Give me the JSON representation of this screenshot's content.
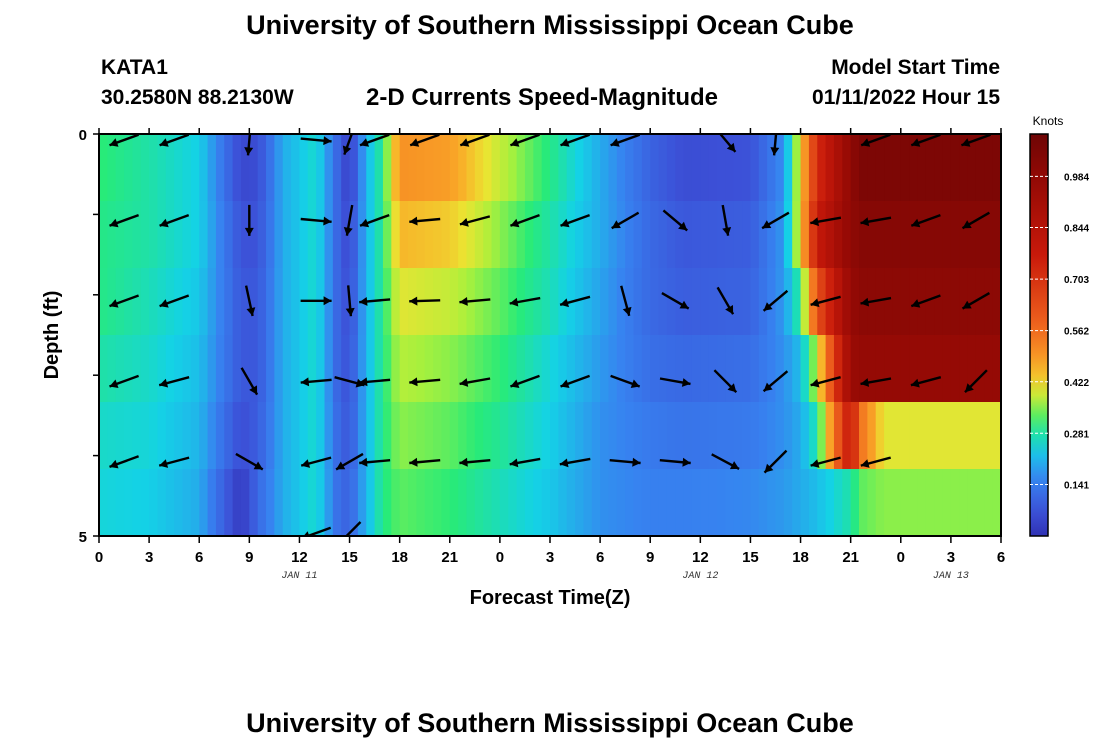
{
  "page": {
    "title": "University of Southern Mississippi Ocean Cube",
    "title_repeat": "University of Southern Mississippi Ocean Cube",
    "station_id": "KATA1",
    "station_coords": "30.2580N  88.2130W",
    "product": "2-D Currents Speed-Magnitude",
    "model_start_label": "Model Start Time",
    "model_start_value": "01/11/2022 Hour 15"
  },
  "chart_data": {
    "type": "heatmap",
    "title": "2-D Currents Speed-Magnitude",
    "xlabel": "Forecast Time(Z)",
    "ylabel": "Depth (ft)",
    "x_ticks": [
      "0",
      "3",
      "6",
      "9",
      "12",
      "15",
      "18",
      "21",
      "0",
      "3",
      "6",
      "9",
      "12",
      "15",
      "18",
      "21",
      "0",
      "3",
      "6"
    ],
    "x_hours_range": [
      0,
      54
    ],
    "date_labels": [
      {
        "text": "JAN 11",
        "hour": 12
      },
      {
        "text": "JAN 12",
        "hour": 36
      },
      {
        "text": "JAN 13",
        "hour": 51
      }
    ],
    "y_ticks": [
      "0",
      "5"
    ],
    "y_range": [
      0,
      5
    ],
    "colorbar": {
      "unit": "Knots",
      "labels": [
        "0.984",
        "0.844",
        "0.703",
        "0.562",
        "0.422",
        "0.281",
        "0.141"
      ],
      "range": [
        0.0,
        1.1
      ]
    },
    "anchor_hours": [
      0,
      3,
      6,
      8.5,
      9.5,
      11,
      13,
      14.4,
      15,
      16,
      17,
      18,
      21,
      24,
      27,
      30,
      33,
      35,
      39,
      41,
      42,
      43,
      45,
      45.6,
      47
    ],
    "row_speeds": [
      [
        0.31,
        0.28,
        0.24,
        0.05,
        0.06,
        0.2,
        0.26,
        0.09,
        0.03,
        0.21,
        0.3,
        0.5,
        0.48,
        0.38,
        0.3,
        0.2,
        0.1,
        0.06,
        0.07,
        0.17,
        0.42,
        0.72,
        0.99,
        1.05,
        1.05
      ],
      [
        0.3,
        0.28,
        0.24,
        0.07,
        0.07,
        0.2,
        0.26,
        0.09,
        0.05,
        0.21,
        0.3,
        0.45,
        0.43,
        0.35,
        0.28,
        0.2,
        0.11,
        0.08,
        0.09,
        0.18,
        0.42,
        0.78,
        0.99,
        1.02,
        1.02
      ],
      [
        0.3,
        0.27,
        0.23,
        0.08,
        0.08,
        0.2,
        0.26,
        0.09,
        0.06,
        0.21,
        0.3,
        0.4,
        0.38,
        0.33,
        0.27,
        0.19,
        0.11,
        0.09,
        0.1,
        0.18,
        0.3,
        0.62,
        0.97,
        1.0,
        1.0
      ],
      [
        0.28,
        0.26,
        0.22,
        0.08,
        0.08,
        0.2,
        0.26,
        0.09,
        0.07,
        0.21,
        0.3,
        0.37,
        0.35,
        0.31,
        0.25,
        0.18,
        0.12,
        0.11,
        0.12,
        0.17,
        0.22,
        0.38,
        0.95,
        0.97,
        0.97
      ],
      [
        0.26,
        0.25,
        0.21,
        0.06,
        0.09,
        0.2,
        0.26,
        0.1,
        0.08,
        0.21,
        0.3,
        0.35,
        0.33,
        0.29,
        0.24,
        0.17,
        0.14,
        0.13,
        0.14,
        0.17,
        0.2,
        0.28,
        0.8,
        0.55,
        0.4
      ],
      [
        0.25,
        0.24,
        0.2,
        0.02,
        0.11,
        0.2,
        0.26,
        0.11,
        0.1,
        0.21,
        0.3,
        0.33,
        0.31,
        0.27,
        0.23,
        0.17,
        0.15,
        0.15,
        0.16,
        0.18,
        0.2,
        0.22,
        0.28,
        0.33,
        0.35
      ]
    ],
    "vectors": {
      "hours": [
        1.5,
        4.5,
        9,
        13,
        15,
        16.5,
        19.5,
        22.5,
        25.5,
        28.5,
        31.5,
        34.5,
        37.5,
        40.5,
        43.5,
        46.5,
        49.5,
        52.5
      ],
      "depth_rows": [
        0,
        1,
        2,
        3,
        4,
        5
      ],
      "rows": [
        [
          {
            "dir": 250,
            "sp": 0.3
          },
          {
            "dir": 250,
            "sp": 0.3
          },
          {
            "dir": 185,
            "sp": 0.3
          },
          {
            "dir": 95,
            "sp": 0.3
          },
          {
            "dir": 200,
            "sp": 0.3
          },
          {
            "dir": 250,
            "sp": 0.3
          },
          {
            "dir": 250,
            "sp": 0.3
          },
          {
            "dir": 250,
            "sp": 0.3
          },
          {
            "dir": 250,
            "sp": 0.3
          },
          {
            "dir": 250,
            "sp": 0.3
          },
          {
            "dir": 250,
            "sp": 0.3
          },
          {
            "dir": null,
            "sp": 0
          },
          {
            "dir": 140,
            "sp": 0.3
          },
          {
            "dir": 185,
            "sp": 0.3
          },
          {
            "dir": null,
            "sp": 0
          },
          {
            "dir": 250,
            "sp": 0.3
          },
          {
            "dir": 250,
            "sp": 0.3
          },
          {
            "dir": 250,
            "sp": 0.3
          }
        ],
        [
          {
            "dir": 250,
            "sp": 0.3
          },
          {
            "dir": 250,
            "sp": 0.3
          },
          {
            "dir": 180,
            "sp": 0.3
          },
          {
            "dir": 95,
            "sp": 0.3
          },
          {
            "dir": 190,
            "sp": 0.3
          },
          {
            "dir": 250,
            "sp": 0.3
          },
          {
            "dir": 265,
            "sp": 0.3
          },
          {
            "dir": 255,
            "sp": 0.3
          },
          {
            "dir": 250,
            "sp": 0.3
          },
          {
            "dir": 250,
            "sp": 0.3
          },
          {
            "dir": 240,
            "sp": 0.3
          },
          {
            "dir": 130,
            "sp": 0.3
          },
          {
            "dir": 170,
            "sp": 0.3
          },
          {
            "dir": 240,
            "sp": 0.3
          },
          {
            "dir": 260,
            "sp": 0.3
          },
          {
            "dir": 260,
            "sp": 0.3
          },
          {
            "dir": 250,
            "sp": 0.3
          },
          {
            "dir": 240,
            "sp": 0.3
          }
        ],
        [
          {
            "dir": 250,
            "sp": 0.3
          },
          {
            "dir": 250,
            "sp": 0.3
          },
          {
            "dir": 168,
            "sp": 0.3
          },
          {
            "dir": 90,
            "sp": 0.3
          },
          {
            "dir": 175,
            "sp": 0.3
          },
          {
            "dir": 265,
            "sp": 0.3
          },
          {
            "dir": 268,
            "sp": 0.3
          },
          {
            "dir": 265,
            "sp": 0.3
          },
          {
            "dir": 260,
            "sp": 0.3
          },
          {
            "dir": 255,
            "sp": 0.3
          },
          {
            "dir": 165,
            "sp": 0.3
          },
          {
            "dir": 120,
            "sp": 0.3
          },
          {
            "dir": 150,
            "sp": 0.3
          },
          {
            "dir": 230,
            "sp": 0.3
          },
          {
            "dir": 255,
            "sp": 0.3
          },
          {
            "dir": 260,
            "sp": 0.3
          },
          {
            "dir": 250,
            "sp": 0.3
          },
          {
            "dir": 240,
            "sp": 0.3
          }
        ],
        [
          {
            "dir": 250,
            "sp": 0.3
          },
          {
            "dir": 255,
            "sp": 0.3
          },
          {
            "dir": 150,
            "sp": 0.3
          },
          {
            "dir": 265,
            "sp": 0.3
          },
          {
            "dir": 105,
            "sp": 0.3
          },
          {
            "dir": 265,
            "sp": 0.3
          },
          {
            "dir": 265,
            "sp": 0.3
          },
          {
            "dir": 260,
            "sp": 0.3
          },
          {
            "dir": 250,
            "sp": 0.3
          },
          {
            "dir": 250,
            "sp": 0.3
          },
          {
            "dir": 110,
            "sp": 0.3
          },
          {
            "dir": 100,
            "sp": 0.3
          },
          {
            "dir": 135,
            "sp": 0.3
          },
          {
            "dir": 230,
            "sp": 0.3
          },
          {
            "dir": 255,
            "sp": 0.3
          },
          {
            "dir": 260,
            "sp": 0.3
          },
          {
            "dir": 255,
            "sp": 0.3
          },
          {
            "dir": 225,
            "sp": 0.3
          }
        ],
        [
          {
            "dir": 250,
            "sp": 0.3
          },
          {
            "dir": 255,
            "sp": 0.3
          },
          {
            "dir": 120,
            "sp": 0.3
          },
          {
            "dir": 255,
            "sp": 0.3
          },
          {
            "dir": 240,
            "sp": 0.3
          },
          {
            "dir": 265,
            "sp": 0.3
          },
          {
            "dir": 265,
            "sp": 0.3
          },
          {
            "dir": 265,
            "sp": 0.3
          },
          {
            "dir": 260,
            "sp": 0.3
          },
          {
            "dir": 260,
            "sp": 0.3
          },
          {
            "dir": 95,
            "sp": 0.3
          },
          {
            "dir": 95,
            "sp": 0.3
          },
          {
            "dir": 118,
            "sp": 0.3
          },
          {
            "dir": 225,
            "sp": 0.3
          },
          {
            "dir": 255,
            "sp": 0.3
          },
          {
            "dir": 255,
            "sp": 0.3
          },
          {
            "dir": null,
            "sp": 0
          },
          {
            "dir": null,
            "sp": 0
          }
        ],
        [
          {
            "dir": null,
            "sp": 0
          },
          {
            "dir": null,
            "sp": 0
          },
          {
            "dir": null,
            "sp": 0
          },
          {
            "dir": 250,
            "sp": 0.3
          },
          {
            "dir": 225,
            "sp": 0.3
          },
          {
            "dir": null,
            "sp": 0
          },
          {
            "dir": null,
            "sp": 0
          },
          {
            "dir": null,
            "sp": 0
          },
          {
            "dir": null,
            "sp": 0
          },
          {
            "dir": null,
            "sp": 0
          },
          {
            "dir": null,
            "sp": 0
          },
          {
            "dir": null,
            "sp": 0
          },
          {
            "dir": null,
            "sp": 0
          },
          {
            "dir": null,
            "sp": 0
          },
          {
            "dir": null,
            "sp": 0
          },
          {
            "dir": null,
            "sp": 0
          },
          {
            "dir": null,
            "sp": 0
          },
          {
            "dir": null,
            "sp": 0
          }
        ]
      ]
    }
  }
}
